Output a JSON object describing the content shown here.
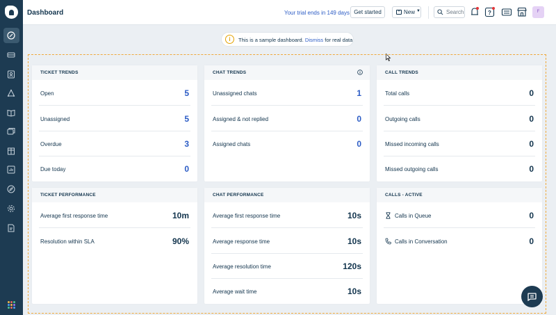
{
  "header": {
    "title": "Dashboard",
    "trial_text": "Your trial ends in 149 days",
    "get_started_label": "Get started",
    "new_label": "New",
    "search_placeholder": "Search",
    "avatar_initial": "F"
  },
  "banner": {
    "text": "This is a sample dashboard.",
    "dismiss_label": "Dismiss",
    "suffix": "for real data"
  },
  "colors": {
    "sidebar_bg": "#1d3b52",
    "accent_blue": "#2c5cc5",
    "warning": "#e4a200",
    "frame_border": "#f0a93b"
  },
  "sidebar": {
    "items": [
      "dashboard-icon",
      "tickets-icon",
      "contacts-icon",
      "groups-icon",
      "solutions-icon",
      "forums-icon",
      "marketplace-icon",
      "reports-icon",
      "discover-icon",
      "admin-icon",
      "document-icon"
    ]
  },
  "cards": {
    "ticket_trends": {
      "title": "TICKET TRENDS",
      "rows": [
        {
          "label": "Open",
          "value": "5"
        },
        {
          "label": "Unassigned",
          "value": "5"
        },
        {
          "label": "Overdue",
          "value": "3"
        },
        {
          "label": "Due today",
          "value": "0"
        }
      ]
    },
    "chat_trends": {
      "title": "CHAT TRENDS",
      "rows": [
        {
          "label": "Unassigned chats",
          "value": "1"
        },
        {
          "label": "Assigned & not replied",
          "value": "0"
        },
        {
          "label": "Assigned chats",
          "value": "0"
        }
      ]
    },
    "call_trends": {
      "title": "CALL TRENDS",
      "rows": [
        {
          "label": "Total calls",
          "value": "0"
        },
        {
          "label": "Outgoing calls",
          "value": "0"
        },
        {
          "label": "Missed incoming calls",
          "value": "0"
        },
        {
          "label": "Missed outgoing calls",
          "value": "0"
        }
      ]
    },
    "ticket_performance": {
      "title": "TICKET PERFORMANCE",
      "rows": [
        {
          "label": "Average first response time",
          "value": "10m"
        },
        {
          "label": "Resolution within SLA",
          "value": "90%"
        }
      ]
    },
    "chat_performance": {
      "title": "CHAT PERFORMANCE",
      "rows": [
        {
          "label": "Average first response time",
          "value": "10s"
        },
        {
          "label": "Average response time",
          "value": "10s"
        },
        {
          "label": "Average resolution time",
          "value": "120s"
        },
        {
          "label": "Average wait time",
          "value": "10s"
        }
      ]
    },
    "calls_active": {
      "title": "CALLS - ACTIVE",
      "rows": [
        {
          "label": "Calls in Queue",
          "value": "0",
          "icon": "hourglass-icon"
        },
        {
          "label": "Calls in Conversation",
          "value": "0",
          "icon": "phone-icon"
        }
      ]
    }
  }
}
